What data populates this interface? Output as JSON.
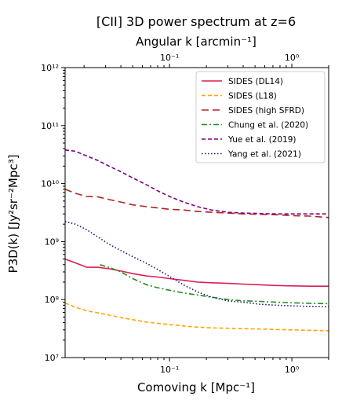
{
  "chart_data": {
    "type": "line",
    "title": "[CII] 3D power spectrum at z=6",
    "top_axis_label": "Angular k [arcmin⁻¹]",
    "xlabel": "Comoving k [Mpc⁻¹]",
    "ylabel": "P3D(k) [Jy²sr⁻²Mpc³]",
    "xscale": "log",
    "yscale": "log",
    "xlim": [
      0.014,
      2.0
    ],
    "ylim": [
      10000000.0,
      1000000000000.0
    ],
    "grid": false,
    "legend_position": "upper right",
    "x_ticks": [
      {
        "value": 0.1,
        "label": "10⁻¹"
      },
      {
        "value": 1,
        "label": "10⁰"
      }
    ],
    "top_ticks": [
      {
        "value": 0.1,
        "label": "10⁻¹"
      },
      {
        "value": 1,
        "label": "10⁰"
      }
    ],
    "y_ticks": [
      {
        "value": 10000000.0,
        "label": "10⁷"
      },
      {
        "value": 100000000.0,
        "label": "10⁸"
      },
      {
        "value": 1000000000.0,
        "label": "10⁹"
      },
      {
        "value": 10000000000.0,
        "label": "10¹⁰"
      },
      {
        "value": 100000000000.0,
        "label": "10¹¹"
      },
      {
        "value": 1000000000000.0,
        "label": "10¹²"
      }
    ],
    "series": [
      {
        "name": "SIDES (DL14)",
        "color": "#dc1e50",
        "dash": "solid",
        "x": [
          0.014,
          0.017,
          0.021,
          0.026,
          0.032,
          0.04,
          0.05,
          0.065,
          0.08,
          0.1,
          0.13,
          0.17,
          0.22,
          0.3,
          0.4,
          0.55,
          0.75,
          1.0,
          1.4,
          2.0
        ],
        "y": [
          500000000.0,
          430000000.0,
          360000000.0,
          360000000.0,
          340000000.0,
          310000000.0,
          280000000.0,
          255000000.0,
          245000000.0,
          230000000.0,
          215000000.0,
          200000000.0,
          195000000.0,
          190000000.0,
          185000000.0,
          180000000.0,
          175000000.0,
          172000000.0,
          170000000.0,
          170000000.0
        ]
      },
      {
        "name": "SIDES (L18)",
        "color": "#ffa500",
        "dash": "dashed",
        "x": [
          0.014,
          0.017,
          0.021,
          0.026,
          0.032,
          0.04,
          0.05,
          0.065,
          0.08,
          0.1,
          0.13,
          0.17,
          0.22,
          0.3,
          0.4,
          0.55,
          0.75,
          1.0,
          1.4,
          2.0
        ],
        "y": [
          87000000.0,
          74000000.0,
          64000000.0,
          59000000.0,
          54000000.0,
          49000000.0,
          45000000.0,
          41000000.0,
          39000000.0,
          37000000.0,
          35000000.0,
          33500000.0,
          32500000.0,
          32000000.0,
          31500000.0,
          31000000.0,
          30500000.0,
          30000000.0,
          29500000.0,
          29000000.0
        ]
      },
      {
        "name": "SIDES (high SFRD)",
        "color": "#b22222",
        "dash": "longdash",
        "x": [
          0.014,
          0.017,
          0.021,
          0.026,
          0.032,
          0.04,
          0.05,
          0.065,
          0.08,
          0.1,
          0.13,
          0.17,
          0.22,
          0.3,
          0.4,
          0.55,
          0.75,
          1.0,
          1.4,
          2.0
        ],
        "y": [
          8000000000.0,
          6800000000.0,
          6000000000.0,
          5900000000.0,
          5300000000.0,
          4800000000.0,
          4300000000.0,
          4000000000.0,
          3800000000.0,
          3600000000.0,
          3500000000.0,
          3300000000.0,
          3200000000.0,
          3100000000.0,
          3000000000.0,
          2950000000.0,
          2900000000.0,
          2800000000.0,
          2750000000.0,
          2600000000.0
        ]
      },
      {
        "name": "Chung et al. (2020)",
        "color": "#228b22",
        "dash": "dashdot",
        "x": [
          0.027,
          0.033,
          0.04,
          0.05,
          0.065,
          0.08,
          0.1,
          0.13,
          0.17,
          0.22,
          0.3,
          0.4,
          0.55,
          0.75,
          1.0,
          1.4,
          2.0
        ],
        "y": [
          400000000.0,
          350000000.0,
          300000000.0,
          230000000.0,
          180000000.0,
          160000000.0,
          145000000.0,
          130000000.0,
          120000000.0,
          110000000.0,
          100000000.0,
          95000000.0,
          93000000.0,
          90000000.0,
          88000000.0,
          86000000.0,
          85000000.0
        ]
      },
      {
        "name": "Yue et al. (2019)",
        "color": "#800080",
        "dash": "dashed",
        "x": [
          0.014,
          0.017,
          0.021,
          0.026,
          0.032,
          0.04,
          0.05,
          0.065,
          0.08,
          0.1,
          0.13,
          0.17,
          0.22,
          0.3,
          0.4,
          0.55,
          0.75,
          1.0,
          1.4,
          2.0
        ],
        "y": [
          38000000000.0,
          36000000000.0,
          30000000000.0,
          25000000000.0,
          20000000000.0,
          16000000000.0,
          12500000000.0,
          9500000000.0,
          7500000000.0,
          6000000000.0,
          4800000000.0,
          4000000000.0,
          3500000000.0,
          3200000000.0,
          3100000000.0,
          3050000000.0,
          3000000000.0,
          3000000000.0,
          3000000000.0,
          3000000000.0
        ]
      },
      {
        "name": "Yang et al. (2021)",
        "color": "#191970",
        "dash": "dotted",
        "x": [
          0.014,
          0.017,
          0.021,
          0.026,
          0.032,
          0.04,
          0.05,
          0.065,
          0.08,
          0.1,
          0.13,
          0.17,
          0.22,
          0.3,
          0.4,
          0.55,
          0.75,
          1.0,
          1.4,
          2.0
        ],
        "y": [
          2200000000.0,
          2000000000.0,
          1600000000.0,
          1200000000.0,
          900000000.0,
          700000000.0,
          550000000.0,
          420000000.0,
          330000000.0,
          250000000.0,
          180000000.0,
          135000000.0,
          110000000.0,
          95000000.0,
          90000000.0,
          83000000.0,
          80000000.0,
          78000000.0,
          76000000.0,
          75000000.0
        ]
      }
    ]
  }
}
